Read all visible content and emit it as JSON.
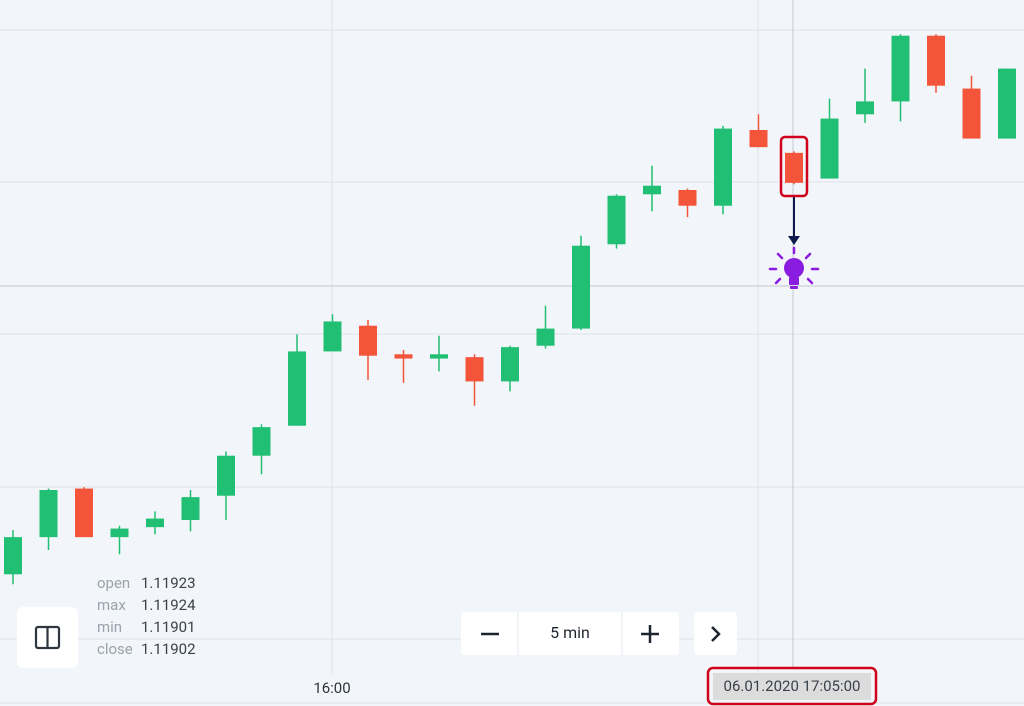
{
  "chart_data": {
    "type": "candlestick",
    "up_color": "#21bf73",
    "down_color": "#f4553a",
    "open": [
      1.11628,
      1.11654,
      1.11688,
      1.11654,
      1.11661,
      1.11666,
      1.11683,
      1.11711,
      1.11732,
      1.11784,
      1.11802,
      1.11782,
      1.11779,
      1.1178,
      1.11763,
      1.11788,
      1.118,
      1.11859,
      1.11894,
      1.11897,
      1.11886,
      1.11939,
      1.11923,
      1.11905,
      1.1195,
      1.11959,
      1.12005,
      1.11968,
      1.11933
    ],
    "high": [
      1.11659,
      1.11688,
      1.11689,
      1.11662,
      1.11672,
      1.11687,
      1.11714,
      1.11733,
      1.11796,
      1.1181,
      1.11806,
      1.11785,
      1.11795,
      1.11782,
      1.11788,
      1.11816,
      1.11865,
      1.11894,
      1.11914,
      1.11898,
      1.11942,
      1.1195,
      1.11924,
      1.11961,
      1.11982,
      1.12006,
      1.12006,
      1.11977,
      1.11982
    ],
    "low": [
      1.11621,
      1.11645,
      1.11654,
      1.11642,
      1.11656,
      1.11658,
      1.11666,
      1.11698,
      1.11732,
      1.11784,
      1.11764,
      1.11762,
      1.1177,
      1.11746,
      1.11756,
      1.11786,
      1.11799,
      1.11856,
      1.11882,
      1.11878,
      1.1188,
      1.11927,
      1.11901,
      1.11905,
      1.11944,
      1.11945,
      1.11965,
      1.11933,
      1.11933
    ],
    "close": [
      1.11654,
      1.11687,
      1.11654,
      1.1166,
      1.11667,
      1.11682,
      1.11711,
      1.11731,
      1.11784,
      1.11805,
      1.11781,
      1.11779,
      1.11782,
      1.11763,
      1.11787,
      1.118,
      1.11858,
      1.11893,
      1.119,
      1.11886,
      1.1194,
      1.11927,
      1.11902,
      1.11947,
      1.11959,
      1.12005,
      1.1197,
      1.11933,
      1.11982
    ],
    "ylim": [
      1.1154,
      1.1203
    ],
    "x_tick": "16:00",
    "crosshair_time": "06.01.2020 17:05:00"
  },
  "info": {
    "labels": [
      "open",
      "max",
      "min",
      "close"
    ],
    "values": [
      1.11923,
      1.11924,
      1.11901,
      1.11902
    ]
  },
  "timeframe": "5 min"
}
